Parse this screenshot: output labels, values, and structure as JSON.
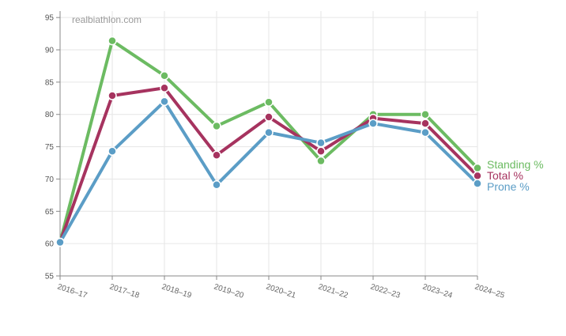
{
  "watermark": "realbiathlon.com",
  "chart_data": {
    "type": "line",
    "categories": [
      "2016–17",
      "2017–18",
      "2018–19",
      "2019–20",
      "2020–21",
      "2021–22",
      "2022–23",
      "2023–24",
      "2024–25"
    ],
    "ylim": [
      55,
      96
    ],
    "yticks": [
      55,
      60,
      65,
      70,
      75,
      80,
      85,
      90,
      95
    ],
    "grid": true,
    "legend_position": "right, at line ends",
    "series": [
      {
        "name": "Standing %",
        "color": "#6cbb62",
        "values": [
          60.2,
          91.4,
          86.0,
          78.2,
          81.9,
          72.8,
          80.0,
          80.0,
          71.7
        ]
      },
      {
        "name": "Total %",
        "color": "#a6335f",
        "values": [
          60.2,
          82.9,
          84.1,
          73.7,
          79.6,
          74.3,
          79.4,
          78.6,
          70.5
        ]
      },
      {
        "name": "Prone %",
        "color": "#5b9dc6",
        "values": [
          60.2,
          74.3,
          82.0,
          69.1,
          77.2,
          75.6,
          78.6,
          77.2,
          69.3
        ]
      }
    ]
  }
}
